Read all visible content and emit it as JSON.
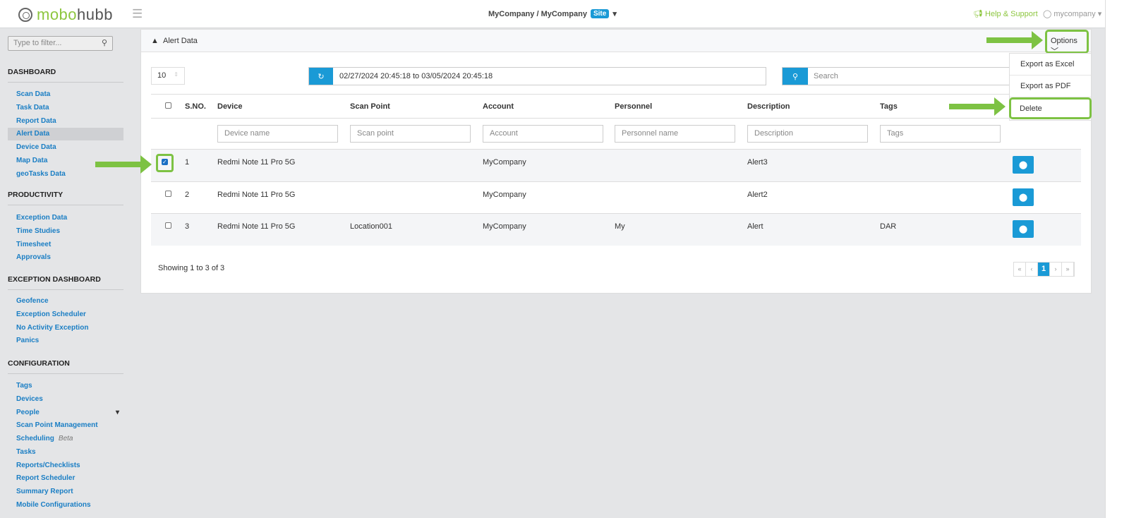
{
  "header": {
    "logo_a": "mobo",
    "logo_b": "hubb",
    "breadcrumb": "MyCompany / MyCompany",
    "site_badge": "Site",
    "help": "Help & Support",
    "user": "mycompany"
  },
  "sidebar": {
    "filter_placeholder": "Type to filter...",
    "sections": [
      {
        "title": "DASHBOARD",
        "items": [
          "Scan Data",
          "Task Data",
          "Report Data",
          "Alert Data",
          "Device Data",
          "Map Data",
          "geoTasks Data"
        ]
      },
      {
        "title": "PRODUCTIVITY",
        "items": [
          "Exception Data",
          "Time Studies",
          "Timesheet",
          "Approvals"
        ]
      },
      {
        "title": "EXCEPTION DASHBOARD",
        "items": [
          "Geofence",
          "Exception Scheduler",
          "No Activity Exception",
          "Panics"
        ]
      },
      {
        "title": "CONFIGURATION",
        "items": [
          "Tags",
          "Devices",
          "People",
          "Scan Point Management",
          "Scheduling",
          "Tasks",
          "Reports/Checklists",
          "Report Scheduler",
          "Summary Report",
          "Mobile Configurations"
        ]
      }
    ],
    "active": "Alert Data",
    "beta_label": "Beta"
  },
  "panel": {
    "title": "Alert Data",
    "options": "Options",
    "menu": [
      "Export as Excel",
      "Export as PDF",
      "Delete"
    ],
    "page_size": "10",
    "date_range": "02/27/2024 20:45:18 to 03/05/2024 20:45:18",
    "search_placeholder": "Search",
    "columns": [
      "S.NO.",
      "Device",
      "Scan Point",
      "Account",
      "Personnel",
      "Description",
      "Tags"
    ],
    "filters": [
      "Device name",
      "Scan point",
      "Account",
      "Personnel name",
      "Description",
      "Tags"
    ],
    "rows": [
      {
        "sno": "1",
        "device": "Redmi Note 11 Pro 5G",
        "scan_point": "",
        "account": "MyCompany",
        "personnel": "",
        "description": "Alert3",
        "tags": "",
        "checked": true
      },
      {
        "sno": "2",
        "device": "Redmi Note 11 Pro 5G",
        "scan_point": "",
        "account": "MyCompany",
        "personnel": "",
        "description": "Alert2",
        "tags": "",
        "checked": false
      },
      {
        "sno": "3",
        "device": "Redmi Note 11 Pro 5G",
        "scan_point": "Location001",
        "account": "MyCompany",
        "personnel": "My",
        "description": "Alert",
        "tags": "DAR",
        "checked": false
      }
    ],
    "showing": "Showing 1 to 3 of 3",
    "pager": [
      "«",
      "‹",
      "1",
      "›",
      "»"
    ]
  },
  "colors": {
    "accent": "#1a9ad6",
    "highlight": "#7dc243",
    "brand_green": "#8dc63f"
  }
}
